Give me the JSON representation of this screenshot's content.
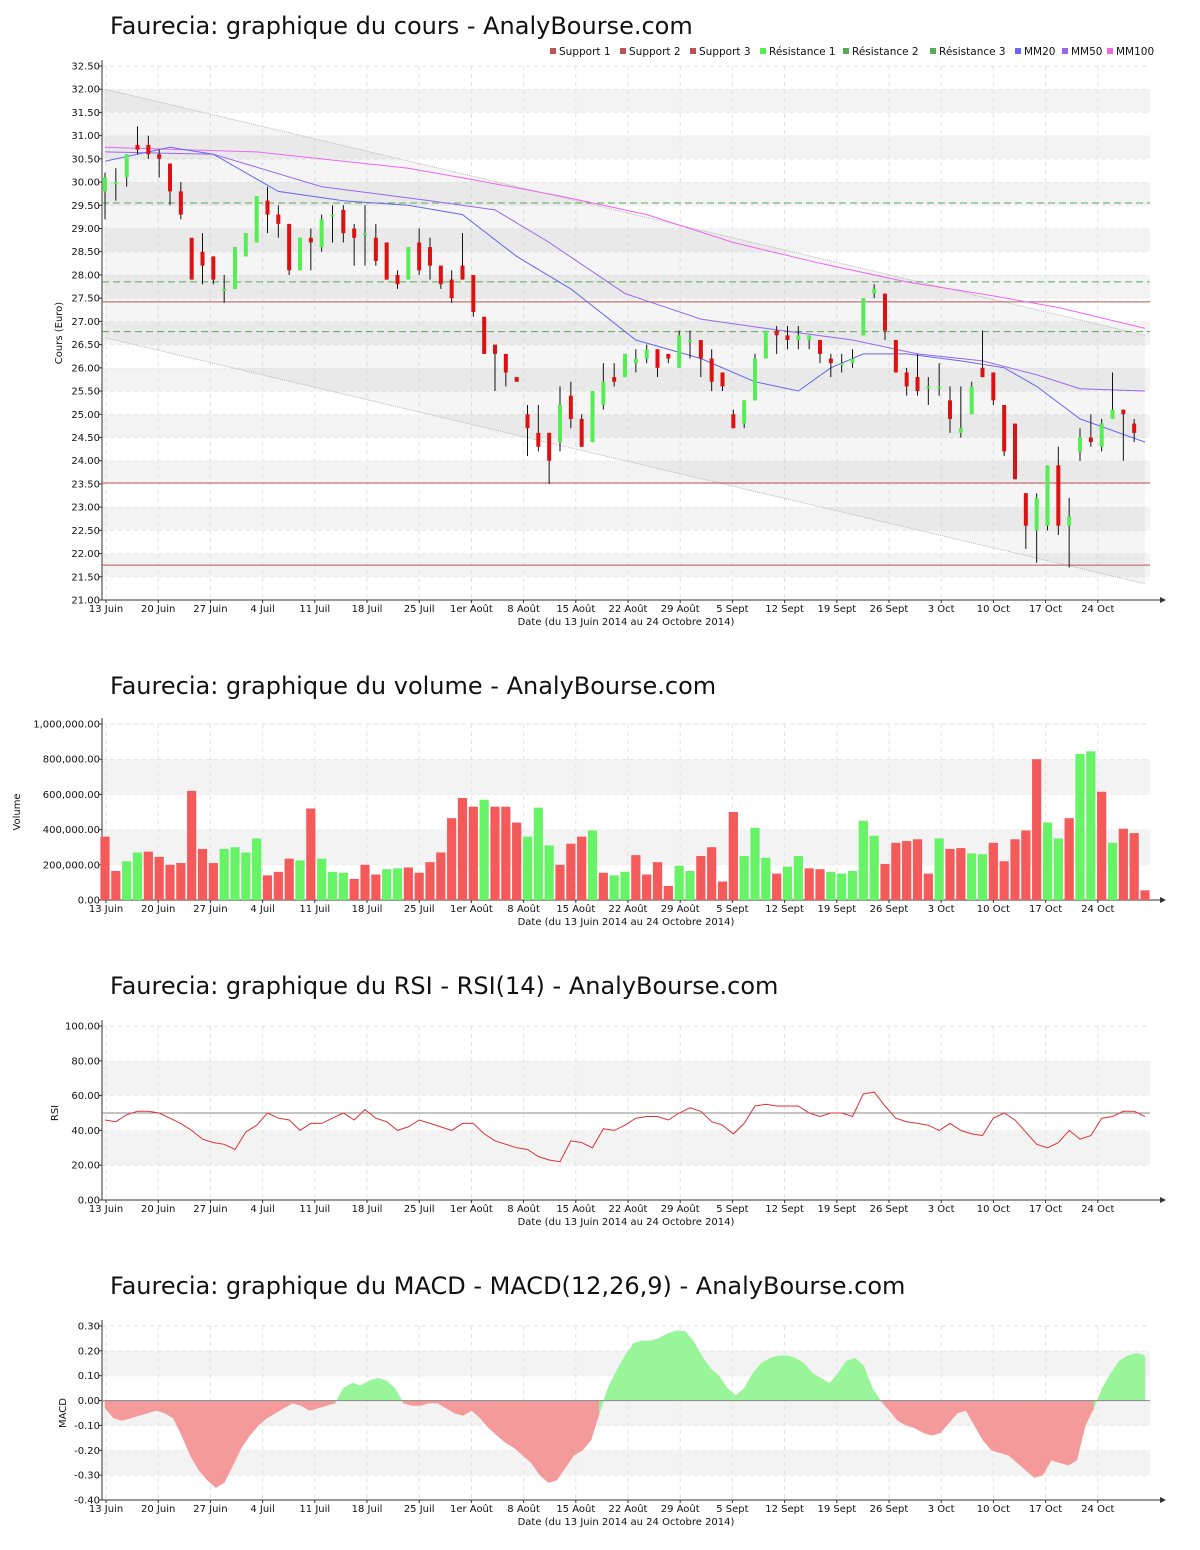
{
  "colors": {
    "up": "#55ee55",
    "down": "#dd1111",
    "vol_up": "#66f466",
    "vol_down": "#f45a5a",
    "support": "#bb5555",
    "resistance": "#55aa55",
    "mm20": "#6666ee",
    "mm50": "#9966ee",
    "mm100": "#ee66ee",
    "rsi": "#dd3333",
    "macd_pos": "#99f599",
    "macd_neg": "#f59a9a"
  },
  "x_ticks": [
    "13 Juin",
    "20 Juin",
    "27 Juin",
    "4 Juil",
    "11 Juil",
    "18 Juil",
    "25 Juil",
    "1er Août",
    "8 Août",
    "15 Août",
    "22 Août",
    "29 Août",
    "5 Sept",
    "12 Sept",
    "19 Sept",
    "26 Sept",
    "3 Oct",
    "10 Oct",
    "17 Oct",
    "24 Oct"
  ],
  "x_label": "Date (du 13 Juin 2014 au 24 Octobre 2014)",
  "chart_data": [
    {
      "type": "candlestick",
      "title": "Faurecia: graphique du cours - AnalyBourse.com",
      "ylabel": "Cours (Euro)",
      "ylim": [
        21.0,
        32.5
      ],
      "y_ticks": [
        "21.00",
        "21.50",
        "22.00",
        "22.50",
        "23.00",
        "23.50",
        "24.00",
        "24.50",
        "25.00",
        "25.50",
        "26.00",
        "26.50",
        "27.00",
        "27.50",
        "28.00",
        "28.50",
        "29.00",
        "29.50",
        "30.00",
        "30.50",
        "31.00",
        "31.50",
        "32.00",
        "32.50"
      ],
      "legend": [
        "Support 1",
        "Support 2",
        "Support 3",
        "Résistance 1",
        "Résistance 2",
        "Résistance 3",
        "MM20",
        "MM50",
        "MM100"
      ],
      "levels": {
        "support": [
          27.42,
          23.52,
          21.75
        ],
        "resistance": [
          29.55,
          27.85,
          26.78
        ]
      },
      "candles": [
        [
          29.8,
          30.1,
          30.2,
          29.2
        ],
        [
          30.0,
          30.0,
          30.3,
          29.6
        ],
        [
          30.1,
          30.6,
          30.6,
          29.9
        ],
        [
          30.8,
          30.7,
          31.2,
          30.6
        ],
        [
          30.8,
          30.6,
          31.0,
          30.5
        ],
        [
          30.6,
          30.5,
          30.7,
          30.1
        ],
        [
          30.4,
          29.8,
          30.4,
          29.5
        ],
        [
          29.8,
          29.3,
          30.0,
          29.2
        ],
        [
          28.8,
          27.9,
          28.8,
          27.9
        ],
        [
          28.5,
          28.2,
          28.9,
          27.8
        ],
        [
          28.4,
          27.9,
          28.4,
          27.8
        ],
        [
          27.7,
          27.7,
          28.0,
          27.4
        ],
        [
          27.7,
          28.6,
          28.6,
          27.7
        ],
        [
          28.4,
          28.9,
          28.9,
          28.4
        ],
        [
          28.7,
          29.7,
          29.7,
          28.7
        ],
        [
          29.6,
          29.3,
          29.9,
          28.9
        ],
        [
          29.3,
          29.1,
          29.5,
          28.8
        ],
        [
          29.1,
          28.1,
          29.1,
          28.0
        ],
        [
          28.1,
          28.8,
          28.8,
          28.1
        ],
        [
          28.8,
          28.7,
          29.0,
          28.1
        ],
        [
          28.6,
          29.2,
          29.3,
          28.5
        ],
        [
          29.3,
          29.3,
          29.5,
          28.7
        ],
        [
          29.4,
          28.9,
          29.5,
          28.7
        ],
        [
          29.0,
          28.8,
          29.1,
          28.2
        ],
        [
          28.9,
          28.9,
          29.5,
          28.2
        ],
        [
          28.8,
          28.3,
          29.1,
          28.2
        ],
        [
          28.7,
          27.9,
          28.7,
          27.9
        ],
        [
          28.0,
          27.8,
          28.1,
          27.7
        ],
        [
          27.9,
          28.6,
          28.6,
          27.9
        ],
        [
          28.7,
          28.1,
          29.0,
          28.0
        ],
        [
          28.6,
          28.2,
          28.8,
          27.9
        ],
        [
          28.2,
          27.8,
          28.2,
          27.7
        ],
        [
          27.9,
          27.5,
          28.1,
          27.4
        ],
        [
          28.2,
          27.9,
          28.9,
          27.9
        ],
        [
          28.0,
          27.2,
          28.0,
          27.1
        ],
        [
          27.1,
          26.3,
          27.1,
          26.3
        ],
        [
          26.5,
          26.3,
          26.5,
          25.5
        ],
        [
          26.3,
          25.9,
          26.3,
          25.6
        ],
        [
          25.8,
          25.7,
          25.8,
          25.7
        ],
        [
          25.0,
          24.7,
          25.2,
          24.1
        ],
        [
          24.6,
          24.3,
          25.2,
          24.2
        ],
        [
          24.6,
          24.0,
          24.6,
          23.5
        ],
        [
          24.4,
          25.2,
          25.6,
          24.2
        ],
        [
          25.4,
          24.9,
          25.7,
          24.7
        ],
        [
          24.9,
          24.3,
          25.0,
          24.3
        ],
        [
          24.4,
          25.5,
          25.5,
          24.4
        ],
        [
          25.2,
          25.7,
          26.1,
          25.1
        ],
        [
          25.8,
          25.7,
          26.1,
          25.6
        ],
        [
          25.8,
          26.3,
          26.3,
          25.8
        ],
        [
          26.1,
          26.2,
          26.4,
          25.9
        ],
        [
          26.2,
          26.4,
          26.5,
          26.1
        ],
        [
          26.4,
          26.0,
          26.4,
          25.8
        ],
        [
          26.3,
          26.2,
          26.3,
          26.1
        ],
        [
          26.0,
          26.7,
          26.8,
          26.0
        ],
        [
          26.6,
          26.6,
          26.8,
          26.2
        ],
        [
          26.6,
          26.2,
          26.6,
          25.8
        ],
        [
          26.2,
          25.7,
          26.4,
          25.5
        ],
        [
          25.9,
          25.6,
          25.9,
          25.5
        ],
        [
          25.0,
          24.7,
          25.1,
          24.7
        ],
        [
          24.8,
          25.3,
          25.3,
          24.7
        ],
        [
          25.3,
          26.2,
          26.3,
          25.3
        ],
        [
          26.2,
          26.8,
          26.8,
          26.2
        ],
        [
          26.8,
          26.7,
          26.9,
          26.3
        ],
        [
          26.7,
          26.6,
          26.9,
          26.4
        ],
        [
          26.6,
          26.7,
          26.9,
          26.4
        ],
        [
          26.6,
          26.7,
          26.7,
          26.4
        ],
        [
          26.6,
          26.3,
          26.6,
          26.1
        ],
        [
          26.2,
          26.1,
          26.3,
          25.8
        ],
        [
          26.1,
          26.1,
          26.3,
          25.9
        ],
        [
          26.1,
          26.2,
          26.4,
          26.0
        ],
        [
          26.7,
          27.5,
          27.5,
          26.7
        ],
        [
          27.6,
          27.7,
          27.8,
          27.5
        ],
        [
          27.6,
          26.8,
          27.6,
          26.6
        ],
        [
          26.6,
          25.9,
          26.6,
          25.9
        ],
        [
          25.9,
          25.6,
          26.0,
          25.4
        ],
        [
          25.8,
          25.5,
          26.3,
          25.4
        ],
        [
          25.6,
          25.6,
          25.8,
          25.2
        ],
        [
          25.6,
          25.6,
          26.1,
          25.4
        ],
        [
          25.3,
          24.9,
          25.6,
          24.6
        ],
        [
          24.6,
          24.7,
          25.6,
          24.5
        ],
        [
          25.0,
          25.6,
          25.7,
          25.0
        ],
        [
          26.0,
          25.8,
          26.8,
          25.8
        ],
        [
          25.9,
          25.3,
          25.9,
          25.2
        ],
        [
          25.2,
          24.2,
          25.2,
          24.1
        ],
        [
          24.8,
          23.6,
          24.8,
          23.6
        ],
        [
          23.3,
          22.6,
          23.3,
          22.1
        ],
        [
          22.5,
          23.2,
          23.3,
          21.8
        ],
        [
          22.6,
          23.9,
          23.9,
          22.5
        ],
        [
          23.9,
          22.6,
          24.3,
          22.4
        ],
        [
          22.6,
          22.8,
          23.2,
          21.7
        ],
        [
          24.2,
          24.5,
          24.7,
          24.0
        ],
        [
          24.5,
          24.4,
          25.0,
          24.3
        ],
        [
          24.3,
          24.8,
          24.9,
          24.2
        ],
        [
          24.9,
          25.1,
          25.9,
          24.9
        ],
        [
          25.1,
          25.0,
          25.1,
          24.0
        ],
        [
          24.8,
          24.6,
          24.9,
          24.4
        ]
      ],
      "mm20": [
        [
          0,
          30.45
        ],
        [
          6,
          30.75
        ],
        [
          10,
          30.6
        ],
        [
          16,
          29.8
        ],
        [
          22,
          29.6
        ],
        [
          28,
          29.5
        ],
        [
          33,
          29.3
        ],
        [
          38,
          28.4
        ],
        [
          43,
          27.7
        ],
        [
          49,
          26.6
        ],
        [
          55,
          26.2
        ],
        [
          60,
          25.7
        ],
        [
          64,
          25.5
        ],
        [
          67,
          26.0
        ],
        [
          70,
          26.3
        ],
        [
          74,
          26.3
        ],
        [
          79,
          26.15
        ],
        [
          83,
          26.0
        ],
        [
          86,
          25.6
        ],
        [
          90,
          24.9
        ],
        [
          96,
          24.4
        ]
      ],
      "mm50": [
        [
          0,
          30.65
        ],
        [
          10,
          30.6
        ],
        [
          20,
          29.9
        ],
        [
          30,
          29.6
        ],
        [
          36,
          29.4
        ],
        [
          41,
          28.7
        ],
        [
          48,
          27.6
        ],
        [
          55,
          27.05
        ],
        [
          61,
          26.85
        ],
        [
          69,
          26.6
        ],
        [
          75,
          26.3
        ],
        [
          81,
          26.15
        ],
        [
          86,
          25.85
        ],
        [
          90,
          25.55
        ],
        [
          96,
          25.5
        ]
      ],
      "mm100": [
        [
          0,
          30.75
        ],
        [
          14,
          30.65
        ],
        [
          22,
          30.45
        ],
        [
          28,
          30.3
        ],
        [
          34,
          30.05
        ],
        [
          42,
          29.7
        ],
        [
          50,
          29.3
        ],
        [
          58,
          28.7
        ],
        [
          66,
          28.25
        ],
        [
          74,
          27.85
        ],
        [
          82,
          27.55
        ],
        [
          88,
          27.3
        ],
        [
          96,
          26.85
        ]
      ],
      "channel": {
        "upper": [
          [
            0,
            32.0
          ],
          [
            96,
            26.7
          ]
        ],
        "lower": [
          [
            0,
            26.65
          ],
          [
            96,
            21.35
          ]
        ]
      }
    },
    {
      "type": "bar",
      "title": "Faurecia: graphique du volume - AnalyBourse.com",
      "ylabel": "Volume",
      "ylim": [
        0,
        1000000
      ],
      "y_ticks": [
        "0.00",
        "200,000.00",
        "400,000.00",
        "600,000.00",
        "800,000.00",
        "1,000,000.00"
      ],
      "values": [
        360000,
        165000,
        220000,
        270000,
        275000,
        245000,
        200000,
        210000,
        620000,
        290000,
        210000,
        290000,
        300000,
        270000,
        350000,
        140000,
        160000,
        235000,
        225000,
        520000,
        235000,
        160000,
        155000,
        120000,
        200000,
        145000,
        175000,
        180000,
        185000,
        155000,
        215000,
        270000,
        465000,
        580000,
        530000,
        570000,
        530000,
        530000,
        440000,
        360000,
        525000,
        310000,
        200000,
        320000,
        360000,
        395000,
        155000,
        140000,
        160000,
        255000,
        145000,
        215000,
        80000,
        195000,
        165000,
        250000,
        300000,
        105000,
        500000,
        250000,
        410000,
        240000,
        150000,
        190000,
        250000,
        180000,
        175000,
        160000,
        150000,
        165000,
        450000,
        365000,
        205000,
        325000,
        335000,
        345000,
        150000,
        350000,
        290000,
        295000,
        265000,
        260000,
        325000,
        220000,
        345000,
        395000,
        800000,
        440000,
        350000,
        465000,
        830000,
        845000,
        615000,
        325000,
        405000,
        380000,
        55000
      ],
      "up": [
        0,
        0,
        1,
        1,
        0,
        0,
        0,
        0,
        0,
        0,
        0,
        1,
        1,
        1,
        1,
        0,
        0,
        0,
        1,
        0,
        1,
        1,
        1,
        0,
        0,
        0,
        1,
        1,
        0,
        0,
        0,
        0,
        0,
        0,
        0,
        1,
        0,
        0,
        0,
        1,
        1,
        1,
        0,
        0,
        0,
        1,
        0,
        1,
        1,
        0,
        0,
        0,
        0,
        1,
        1,
        0,
        0,
        0,
        0,
        1,
        1,
        1,
        0,
        1,
        1,
        0,
        0,
        1,
        1,
        1,
        1,
        1,
        0,
        0,
        0,
        0,
        0,
        1,
        0,
        0,
        1,
        1,
        0,
        0,
        0,
        0,
        0,
        1,
        1,
        0,
        1,
        1,
        0,
        1,
        0,
        0,
        0
      ]
    },
    {
      "type": "line",
      "title": "Faurecia: graphique du RSI - RSI(14) - AnalyBourse.com",
      "ylabel": "RSI",
      "ylim": [
        0,
        100
      ],
      "y_ticks": [
        "0.00",
        "20.00",
        "40.00",
        "60.00",
        "80.00",
        "100.00"
      ],
      "reference": 50,
      "values": [
        46,
        45,
        49,
        51,
        51,
        50,
        47,
        44,
        40,
        35,
        33,
        32,
        29,
        39,
        43,
        50,
        47,
        46,
        40,
        44,
        44,
        47,
        50,
        46,
        52,
        47,
        45,
        40,
        42,
        46,
        44,
        42,
        40,
        44,
        44,
        38,
        34,
        32,
        30,
        29,
        25,
        23,
        22,
        34,
        33,
        30,
        41,
        40,
        43,
        47,
        48,
        48,
        46,
        50,
        53,
        51,
        45,
        43,
        38,
        44,
        54,
        55,
        54,
        54,
        54,
        50,
        48,
        50,
        50,
        48,
        61,
        62,
        54,
        47,
        45,
        44,
        43,
        40,
        44,
        40,
        38,
        37,
        47,
        50,
        46,
        39,
        32,
        30,
        33,
        40,
        35,
        37,
        47,
        48,
        51,
        51,
        48
      ]
    },
    {
      "type": "area",
      "title": "Faurecia: graphique du MACD - MACD(12,26,9) - AnalyBourse.com",
      "ylabel": "MACD",
      "ylim": [
        -0.4,
        0.3
      ],
      "y_ticks": [
        "-0.40",
        "-0.30",
        "-0.20",
        "-0.10",
        "0.00",
        "0.10",
        "0.20",
        "0.30"
      ],
      "values": [
        -0.03,
        -0.07,
        -0.08,
        -0.07,
        -0.06,
        -0.05,
        -0.04,
        -0.05,
        -0.07,
        -0.14,
        -0.22,
        -0.28,
        -0.32,
        -0.35,
        -0.33,
        -0.26,
        -0.19,
        -0.14,
        -0.1,
        -0.07,
        -0.05,
        -0.03,
        -0.01,
        -0.02,
        -0.04,
        -0.03,
        -0.02,
        -0.01,
        0.05,
        0.07,
        0.06,
        0.08,
        0.09,
        0.08,
        0.05,
        -0.01,
        -0.02,
        -0.02,
        -0.01,
        -0.01,
        -0.03,
        -0.05,
        -0.06,
        -0.04,
        -0.07,
        -0.11,
        -0.14,
        -0.17,
        -0.19,
        -0.22,
        -0.25,
        -0.3,
        -0.33,
        -0.32,
        -0.27,
        -0.22,
        -0.2,
        -0.16,
        -0.05,
        0.05,
        0.12,
        0.18,
        0.23,
        0.24,
        0.24,
        0.25,
        0.27,
        0.28,
        0.28,
        0.24,
        0.18,
        0.13,
        0.1,
        0.05,
        0.02,
        0.05,
        0.11,
        0.15,
        0.17,
        0.18,
        0.18,
        0.17,
        0.15,
        0.11,
        0.09,
        0.07,
        0.11,
        0.16,
        0.17,
        0.14,
        0.05,
        0.0,
        -0.04,
        -0.08,
        -0.1,
        -0.11,
        -0.13,
        -0.14,
        -0.13,
        -0.09,
        -0.05,
        -0.04,
        -0.1,
        -0.16,
        -0.2,
        -0.21,
        -0.22,
        -0.25,
        -0.28,
        -0.31,
        -0.3,
        -0.24,
        -0.25,
        -0.26,
        -0.24,
        -0.1,
        -0.03,
        0.05,
        0.11,
        0.16,
        0.18,
        0.19,
        0.18
      ]
    }
  ]
}
